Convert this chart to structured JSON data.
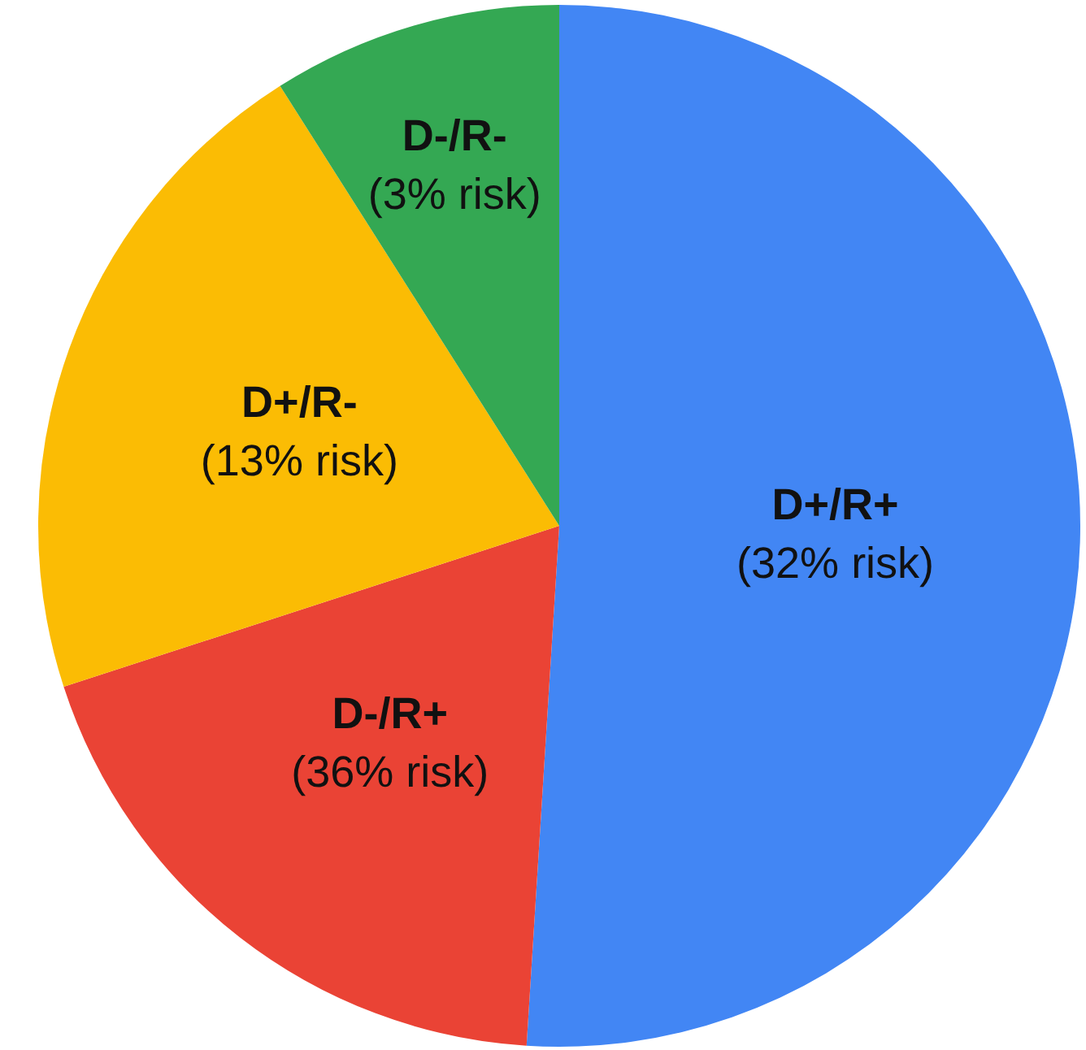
{
  "chart_data": {
    "type": "pie",
    "categories": [
      "D+/R+",
      "D-/R+",
      "D+/R-",
      "D-/R-"
    ],
    "values": [
      51,
      19,
      21,
      9
    ],
    "colors": [
      "#4286f4",
      "#ea4335",
      "#fbbc04",
      "#34a853"
    ],
    "annotations": [
      "(32% risk)",
      "(36% risk)",
      "(13% risk)",
      "(3% risk)"
    ],
    "legend": false
  }
}
